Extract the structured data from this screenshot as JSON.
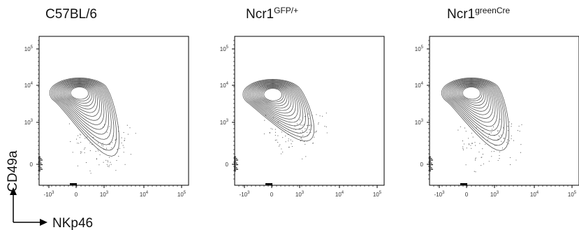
{
  "chart_data": {
    "type": "contour",
    "y_axis_label": "CD49a",
    "x_axis_label": "NKp46",
    "x_ticks": [
      "-10^3",
      "0",
      "10^3",
      "10^4",
      "10^5"
    ],
    "y_ticks": [
      "10^5",
      "10^4",
      "10^3",
      "0"
    ],
    "x_scale": "biexponential",
    "y_scale": "biexponential",
    "panels": [
      {
        "title": {
          "base": "C57BL/6",
          "sup": ""
        },
        "density_peak": {
          "x": 0,
          "y": 5000
        },
        "population_extent": {
          "x": [
            -1500,
            3000
          ],
          "y": [
            -200,
            12000
          ]
        }
      },
      {
        "title": {
          "base": "Ncr1",
          "sup": "GFP/+"
        },
        "density_peak": {
          "x": 0,
          "y": 5000
        },
        "population_extent": {
          "x": [
            -1500,
            2500
          ],
          "y": [
            200,
            12000
          ]
        }
      },
      {
        "title": {
          "base": "Ncr1",
          "sup": "greenCre"
        },
        "density_peak": {
          "x": 100,
          "y": 5000
        },
        "population_extent": {
          "x": [
            -1500,
            3000
          ],
          "y": [
            -200,
            12000
          ]
        }
      }
    ]
  }
}
